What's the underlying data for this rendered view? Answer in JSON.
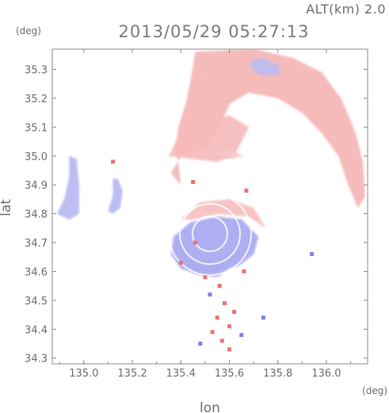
{
  "chart_data": {
    "type": "heatmap",
    "title": "2013/05/29 05:27:13",
    "subtitle": "ALT(km) 2.0",
    "xlabel": "lon",
    "ylabel": "lat",
    "x_unit": "(deg)",
    "y_unit": "(deg)",
    "xlim": [
      134.87,
      136.17
    ],
    "ylim": [
      34.28,
      35.37
    ],
    "x_ticks": [
      135.0,
      135.2,
      135.4,
      135.6,
      135.8,
      136.0
    ],
    "x_tick_labels": [
      "135.0",
      "135.2",
      "135.4",
      "135.6",
      "135.8",
      "136.0"
    ],
    "y_ticks": [
      34.3,
      34.4,
      34.5,
      34.6,
      34.7,
      34.8,
      34.9,
      35.0,
      35.1,
      35.2,
      35.3
    ],
    "y_tick_labels": [
      "34.3",
      "34.4",
      "34.5",
      "34.6",
      "34.7",
      "34.8",
      "34.9",
      "35.0",
      "35.1",
      "35.2",
      "35.3"
    ],
    "grid": false,
    "colors": {
      "positive": "#f08888",
      "negative": "#8c8cee",
      "near_zero": "#ffffff",
      "axis": "#888888"
    },
    "regions": [
      {
        "sign": "positive",
        "level": 0.35,
        "polygon": [
          [
            135.46,
            35.36
          ],
          [
            135.7,
            35.37
          ],
          [
            135.86,
            35.34
          ],
          [
            135.98,
            35.29
          ],
          [
            136.06,
            35.2
          ],
          [
            136.12,
            35.08
          ],
          [
            136.15,
            34.98
          ],
          [
            136.16,
            34.86
          ],
          [
            136.13,
            34.82
          ],
          [
            136.09,
            34.9
          ],
          [
            136.05,
            35.0
          ],
          [
            135.98,
            35.08
          ],
          [
            135.9,
            35.15
          ],
          [
            135.8,
            35.2
          ],
          [
            135.68,
            35.22
          ],
          [
            135.6,
            35.18
          ],
          [
            135.56,
            35.1
          ],
          [
            135.5,
            35.03
          ],
          [
            135.4,
            35.0
          ],
          [
            135.36,
            34.94
          ],
          [
            135.4,
            34.9
          ],
          [
            135.38,
            35.04
          ],
          [
            135.39,
            35.1
          ],
          [
            135.42,
            35.18
          ],
          [
            135.44,
            35.26
          ]
        ]
      },
      {
        "sign": "positive",
        "level": 0.3,
        "polygon": [
          [
            135.35,
            35.0
          ],
          [
            135.45,
            34.99
          ],
          [
            135.55,
            34.98
          ],
          [
            135.62,
            35.0
          ],
          [
            135.68,
            35.1
          ],
          [
            135.6,
            35.14
          ],
          [
            135.5,
            35.12
          ],
          [
            135.42,
            35.09
          ],
          [
            135.38,
            35.05
          ]
        ]
      },
      {
        "sign": "positive",
        "level": 0.25,
        "polygon": [
          [
            135.4,
            34.78
          ],
          [
            135.48,
            34.84
          ],
          [
            135.6,
            34.85
          ],
          [
            135.7,
            34.82
          ],
          [
            135.75,
            34.75
          ],
          [
            135.68,
            34.79
          ],
          [
            135.55,
            34.8
          ],
          [
            135.45,
            34.78
          ]
        ]
      },
      {
        "sign": "negative",
        "level": 0.55,
        "polygon": [
          [
            135.37,
            34.72
          ],
          [
            135.44,
            34.77
          ],
          [
            135.55,
            34.79
          ],
          [
            135.65,
            34.78
          ],
          [
            135.72,
            34.72
          ],
          [
            135.7,
            34.66
          ],
          [
            135.64,
            34.62
          ],
          [
            135.55,
            34.6
          ],
          [
            135.47,
            34.59
          ],
          [
            135.4,
            34.61
          ],
          [
            135.36,
            34.66
          ]
        ]
      },
      {
        "sign": "negative",
        "level": 0.5,
        "polygon": [
          [
            135.41,
            34.62
          ],
          [
            135.47,
            34.59
          ],
          [
            135.55,
            34.58
          ],
          [
            135.6,
            34.61
          ],
          [
            135.55,
            34.63
          ],
          [
            135.46,
            34.64
          ]
        ]
      },
      {
        "sign": "negative",
        "level": 0.35,
        "polygon": [
          [
            134.89,
            34.8
          ],
          [
            134.92,
            34.85
          ],
          [
            134.94,
            34.93
          ],
          [
            134.94,
            35.0
          ],
          [
            134.97,
            34.99
          ],
          [
            134.98,
            34.9
          ],
          [
            134.98,
            34.8
          ],
          [
            134.94,
            34.78
          ]
        ]
      },
      {
        "sign": "negative",
        "level": 0.35,
        "polygon": [
          [
            135.1,
            34.81
          ],
          [
            135.12,
            34.86
          ],
          [
            135.12,
            34.92
          ],
          [
            135.14,
            34.92
          ],
          [
            135.16,
            34.88
          ],
          [
            135.15,
            34.82
          ],
          [
            135.12,
            34.8
          ]
        ]
      },
      {
        "sign": "negative",
        "level": 0.3,
        "polygon": [
          [
            135.69,
            35.33
          ],
          [
            135.74,
            35.34
          ],
          [
            135.81,
            35.31
          ],
          [
            135.8,
            35.28
          ],
          [
            135.73,
            35.28
          ],
          [
            135.69,
            35.3
          ]
        ]
      },
      {
        "sign": "positive",
        "level": 0.15,
        "polygon": [
          [
            135.54,
            35.01
          ],
          [
            135.6,
            35.02
          ],
          [
            135.66,
            35.0
          ],
          [
            135.6,
            34.99
          ]
        ]
      }
    ],
    "echoes": [
      {
        "lon": 135.5,
        "lat": 34.58,
        "sign": "positive"
      },
      {
        "lon": 135.56,
        "lat": 34.55,
        "sign": "positive"
      },
      {
        "lon": 135.52,
        "lat": 34.52,
        "sign": "negative"
      },
      {
        "lon": 135.58,
        "lat": 34.49,
        "sign": "positive"
      },
      {
        "lon": 135.62,
        "lat": 34.46,
        "sign": "positive"
      },
      {
        "lon": 135.55,
        "lat": 34.44,
        "sign": "positive"
      },
      {
        "lon": 135.6,
        "lat": 34.41,
        "sign": "positive"
      },
      {
        "lon": 135.53,
        "lat": 34.39,
        "sign": "positive"
      },
      {
        "lon": 135.65,
        "lat": 34.38,
        "sign": "negative"
      },
      {
        "lon": 135.57,
        "lat": 34.36,
        "sign": "positive"
      },
      {
        "lon": 135.48,
        "lat": 34.35,
        "sign": "negative"
      },
      {
        "lon": 135.6,
        "lat": 34.33,
        "sign": "positive"
      },
      {
        "lon": 135.94,
        "lat": 34.66,
        "sign": "negative"
      },
      {
        "lon": 135.74,
        "lat": 34.44,
        "sign": "negative"
      },
      {
        "lon": 135.46,
        "lat": 34.7,
        "sign": "positive"
      },
      {
        "lon": 135.4,
        "lat": 34.63,
        "sign": "positive"
      },
      {
        "lon": 135.66,
        "lat": 34.6,
        "sign": "positive"
      },
      {
        "lon": 135.12,
        "lat": 34.98,
        "sign": "positive"
      },
      {
        "lon": 135.67,
        "lat": 34.88,
        "sign": "positive"
      },
      {
        "lon": 135.45,
        "lat": 34.91,
        "sign": "positive"
      }
    ]
  }
}
